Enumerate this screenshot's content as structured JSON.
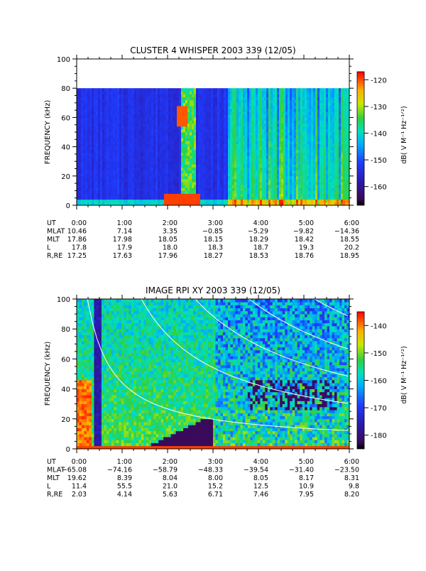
{
  "chart_data": [
    {
      "type": "heatmap",
      "title": "CLUSTER 4 WHISPER 2003 339 (12/05)",
      "ylabel": "FREQUENCY (kHz)",
      "colorbar_label": "dB( V M⁻¹ Hz⁻¹ᐟ²)",
      "ylim": [
        0,
        100
      ],
      "yticks": [
        "0",
        "20",
        "40",
        "60",
        "80",
        "100"
      ],
      "xlim": [
        "0:00",
        "6:00"
      ],
      "colorbar_range": [
        -167,
        -117
      ],
      "colorbar_ticks": [
        "-120",
        "-130",
        "-140",
        "-150",
        "-160"
      ],
      "data_top_khz": 80,
      "ephemeris": {
        "rows": [
          {
            "label": "UT",
            "values": [
              "0:00",
              "1:00",
              "2:00",
              "3:00",
              "4:00",
              "5:00",
              "6:00"
            ]
          },
          {
            "label": "MLAT",
            "values": [
              "10.46",
              "7.14",
              "3.35",
              "−0.85",
              "−5.29",
              "−9.82",
              "−14.36"
            ]
          },
          {
            "label": "MLT",
            "values": [
              "17.86",
              "17.98",
              "18.05",
              "18.15",
              "18.29",
              "18.42",
              "18.55"
            ]
          },
          {
            "label": "L",
            "values": [
              "17.8",
              "17.9",
              "18.0",
              "18.3",
              "18.7",
              "19.3",
              "20.2"
            ]
          },
          {
            "label": "R,RE",
            "values": [
              "17.25",
              "17.63",
              "17.96",
              "18.27",
              "18.53",
              "18.76",
              "18.95"
            ]
          }
        ]
      }
    },
    {
      "type": "heatmap",
      "title": "IMAGE RPI XY 2003 339 (12/05)",
      "ylabel": "FREQUENCY (kHz)",
      "colorbar_label": "dB( V M⁻¹ Hz⁻¹ᐟ²)",
      "ylim": [
        0,
        100
      ],
      "yticks": [
        "0",
        "20",
        "40",
        "60",
        "80",
        "100"
      ],
      "xlim": [
        "0:00",
        "6:00"
      ],
      "colorbar_range": [
        -185,
        -135
      ],
      "colorbar_ticks": [
        "-140",
        "-150",
        "-160",
        "-170",
        "-180"
      ],
      "ephemeris": {
        "rows": [
          {
            "label": "UT",
            "values": [
              "0:00",
              "1:00",
              "2:00",
              "3:00",
              "4:00",
              "5:00",
              "6:00"
            ]
          },
          {
            "label": "MLAT",
            "values": [
              "−65.08",
              "−74.16",
              "−58.79",
              "−48.33",
              "−39.54",
              "−31.40",
              "−23.50"
            ]
          },
          {
            "label": "MLT",
            "values": [
              "19.62",
              "8.39",
              "8.04",
              "8.00",
              "8.05",
              "8.17",
              "8.31"
            ]
          },
          {
            "label": "L",
            "values": [
              "11.4",
              "55.5",
              "21.0",
              "15.2",
              "12.5",
              "10.9",
              "9.8"
            ]
          },
          {
            "label": "R,RE",
            "values": [
              "2.03",
              "4.14",
              "5.63",
              "6.71",
              "7.46",
              "7.95",
              "8.20"
            ]
          }
        ]
      }
    }
  ]
}
